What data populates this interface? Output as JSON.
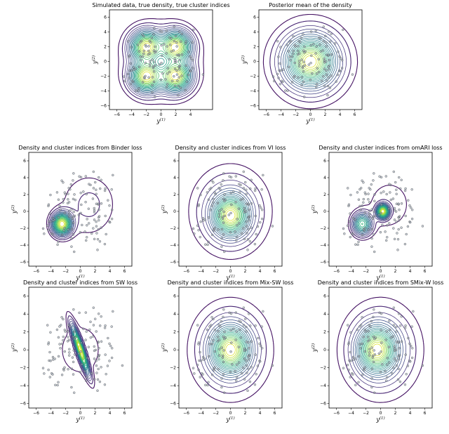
{
  "figure": {
    "contour_colors": [
      "#440154",
      "#472d7b",
      "#3b528b",
      "#2c728e",
      "#21918c",
      "#28ae80",
      "#5ec962",
      "#addc30",
      "#fde725"
    ],
    "point_fill": "#9aa7b8",
    "point_stroke": "#4a4a4a"
  },
  "chart_data": [
    {
      "type": "contour",
      "title": "Simulated data, true density, true cluster indices",
      "xlabel": "y",
      "xlabel_sup": "(1)",
      "ylabel": "y",
      "ylabel_sup": "(2)",
      "xticks": [
        -6,
        -4,
        -2,
        0,
        2,
        4
      ],
      "yticks": [
        -6,
        -4,
        -2,
        0,
        2,
        4,
        6
      ],
      "xlim": [
        -7,
        7
      ],
      "ylim": [
        -6.5,
        7
      ],
      "components": [
        {
          "mx": -2,
          "my": 2,
          "sx": 1.3,
          "sy": 1.3,
          "w": 1
        },
        {
          "mx": 2,
          "my": 2,
          "sx": 1.3,
          "sy": 1.3,
          "w": 1
        },
        {
          "mx": -2,
          "my": -2,
          "sx": 1.3,
          "sy": 1.3,
          "w": 1
        },
        {
          "mx": 2,
          "my": -2,
          "sx": 1.3,
          "sy": 1.3,
          "w": 1
        },
        {
          "mx": 0,
          "my": 0,
          "sx": 4,
          "sy": 4,
          "w": 1.2
        }
      ]
    },
    {
      "type": "contour",
      "title": "Posterior mean of the density",
      "xlabel": "y",
      "xlabel_sup": "(1)",
      "ylabel": "y",
      "ylabel_sup": "(2)",
      "xticks": [
        -6,
        -4,
        -2,
        0,
        2,
        4,
        6
      ],
      "yticks": [
        -6,
        -4,
        -2,
        0,
        2,
        4,
        6
      ],
      "xlim": [
        -7,
        7
      ],
      "ylim": [
        -6.5,
        7
      ],
      "components": [
        {
          "mx": 0,
          "my": 0,
          "sx": 1.8,
          "sy": 1.8,
          "w": 1
        },
        {
          "mx": 0,
          "my": 0,
          "sx": 3.3,
          "sy": 3.3,
          "w": 1.5
        }
      ]
    },
    {
      "type": "contour",
      "title": "Density and cluster indices from Binder loss",
      "xlabel": "y",
      "xlabel_sup": "(1)",
      "ylabel": "y",
      "ylabel_sup": "(2)",
      "xticks": [
        -6,
        -4,
        -2,
        0,
        2,
        4,
        6
      ],
      "yticks": [
        -6,
        -4,
        -2,
        0,
        2,
        4,
        6
      ],
      "xlim": [
        -7,
        7
      ],
      "ylim": [
        -6.5,
        7
      ],
      "components": [
        {
          "mx": -2.5,
          "my": -1.5,
          "sx": 0.8,
          "sy": 0.8,
          "w": 1.5
        },
        {
          "mx": 1.5,
          "my": 1,
          "sx": 2.5,
          "sy": 2.5,
          "w": 1
        },
        {
          "mx": 0,
          "my": 0,
          "sx": 3.5,
          "sy": 3.5,
          "w": 1
        }
      ]
    },
    {
      "type": "contour",
      "title": "Density and cluster indices from VI loss",
      "xlabel": "y",
      "xlabel_sup": "(1)",
      "ylabel": "y",
      "ylabel_sup": "(2)",
      "xticks": [
        -6,
        -4,
        -2,
        0,
        2,
        4,
        6
      ],
      "yticks": [
        -6,
        -4,
        -2,
        0,
        2,
        4,
        6
      ],
      "xlim": [
        -7,
        7
      ],
      "ylim": [
        -6.5,
        7
      ],
      "components": [
        {
          "mx": 0,
          "my": -0.5,
          "sx": 1.4,
          "sy": 1.4,
          "w": 1
        },
        {
          "mx": 0,
          "my": 0,
          "sx": 3.3,
          "sy": 3.3,
          "w": 1.5
        }
      ]
    },
    {
      "type": "contour",
      "title": "Density and cluster indices from omARI loss",
      "xlabel": "y",
      "xlabel_sup": "(1)",
      "ylabel": "y",
      "ylabel_sup": "(2)",
      "xticks": [
        -6,
        -4,
        -2,
        0,
        2,
        4,
        6
      ],
      "yticks": [
        -6,
        -4,
        -2,
        0,
        2,
        4,
        6
      ],
      "xlim": [
        -7,
        7
      ],
      "ylim": [
        -6.5,
        7
      ],
      "components": [
        {
          "mx": -2.5,
          "my": -1.5,
          "sx": 0.8,
          "sy": 0.8,
          "w": 1.3
        },
        {
          "mx": 0.3,
          "my": 0,
          "sx": 0.5,
          "sy": 0.5,
          "w": 0.8
        },
        {
          "mx": 1.5,
          "my": 1,
          "sx": 2.5,
          "sy": 2.5,
          "w": 1
        },
        {
          "mx": 0,
          "my": 0,
          "sx": 3.5,
          "sy": 3.5,
          "w": 1
        }
      ]
    },
    {
      "type": "contour",
      "title": "Density and cluster indices from SW loss",
      "xlabel": "y",
      "xlabel_sup": "(1)",
      "ylabel": "y",
      "ylabel_sup": "(2)",
      "xticks": [
        -6,
        -4,
        -2,
        0,
        2,
        4,
        6
      ],
      "yticks": [
        -6,
        -4,
        -2,
        0,
        2,
        4,
        6
      ],
      "xlim": [
        -7,
        7
      ],
      "ylim": [
        -6.5,
        7
      ],
      "components": [
        {
          "mx": 0,
          "my": 0,
          "sx": 0.7,
          "sy": 1.6,
          "rho": -0.9,
          "w": 1
        },
        {
          "mx": 0,
          "my": 0,
          "sx": 3.3,
          "sy": 3.3,
          "w": 1.5
        }
      ]
    },
    {
      "type": "contour",
      "title": "Density and cluster indices from Mix-SW loss",
      "xlabel": "y",
      "xlabel_sup": "(1)",
      "ylabel": "y",
      "ylabel_sup": "(2)",
      "xticks": [
        -6,
        -4,
        -2,
        0,
        2,
        4,
        6
      ],
      "yticks": [
        -6,
        -4,
        -2,
        0,
        2,
        4,
        6
      ],
      "xlim": [
        -7,
        7
      ],
      "ylim": [
        -6.5,
        7
      ],
      "components": [
        {
          "mx": 0,
          "my": 0,
          "sx": 1.5,
          "sy": 1.5,
          "w": 1
        },
        {
          "mx": 0,
          "my": 0,
          "sx": 3.3,
          "sy": 3.3,
          "w": 1.5
        }
      ]
    },
    {
      "type": "contour",
      "title": "Density and cluster indices from SMix-W loss",
      "xlabel": "y",
      "xlabel_sup": "(1)",
      "ylabel": "y",
      "ylabel_sup": "(2)",
      "xticks": [
        -6,
        -4,
        -2,
        0,
        2,
        4,
        6
      ],
      "yticks": [
        -6,
        -4,
        -2,
        0,
        2,
        4,
        6
      ],
      "xlim": [
        -7,
        7
      ],
      "ylim": [
        -6.5,
        7
      ],
      "components": [
        {
          "mx": -0.5,
          "my": 0,
          "sx": 1.5,
          "sy": 1.5,
          "w": 1
        },
        {
          "mx": 0,
          "my": 0,
          "sx": 3.3,
          "sy": 3.3,
          "w": 1.5
        }
      ]
    }
  ]
}
